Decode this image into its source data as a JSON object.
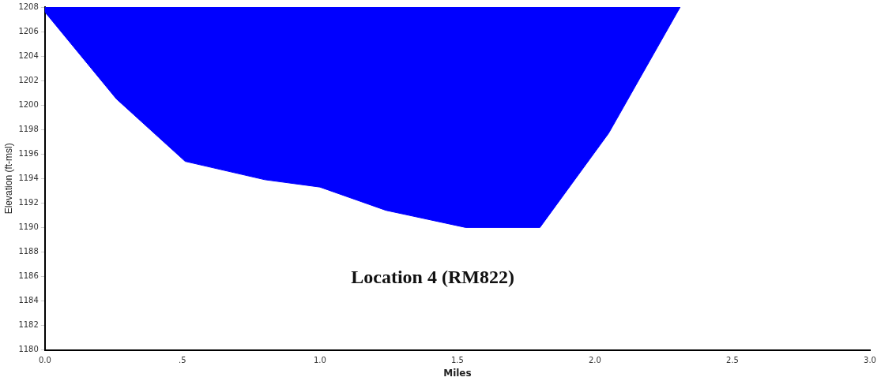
{
  "chart_data": {
    "type": "area",
    "xlabel": "Miles",
    "ylabel": "Elevation (ft-msl)",
    "annotations": [
      "Location 4 (RM822)"
    ],
    "series": [
      {
        "x": [
          0,
          0,
          0.26,
          0.51,
          0.8,
          1.0,
          1.24,
          1.53,
          1.8,
          2.05,
          2.31
        ],
        "values": [
          1208,
          1207.6,
          1200.5,
          1195.4,
          1193.9,
          1193.3,
          1191.4,
          1190,
          1190,
          1197.7,
          1208
        ],
        "color": "#0000ff"
      }
    ],
    "xlim": [
      0,
      3
    ],
    "xticks": [
      {
        "value": 0,
        "label": "0.0"
      },
      {
        "value": 0.5,
        "label": ".5"
      },
      {
        "value": 1,
        "label": "1.0"
      },
      {
        "value": 1.5,
        "label": "1.5"
      },
      {
        "value": 2,
        "label": "2.0"
      },
      {
        "value": 2.5,
        "label": "2.5"
      },
      {
        "value": 3,
        "label": "3.0"
      }
    ],
    "ylim": [
      1180,
      1208
    ],
    "yticks": [
      1180,
      1182,
      1184,
      1186,
      1188,
      1190,
      1192,
      1194,
      1196,
      1198,
      1200,
      1202,
      1204,
      1206,
      1208
    ],
    "grid": false,
    "legend": false,
    "marker": "none"
  }
}
